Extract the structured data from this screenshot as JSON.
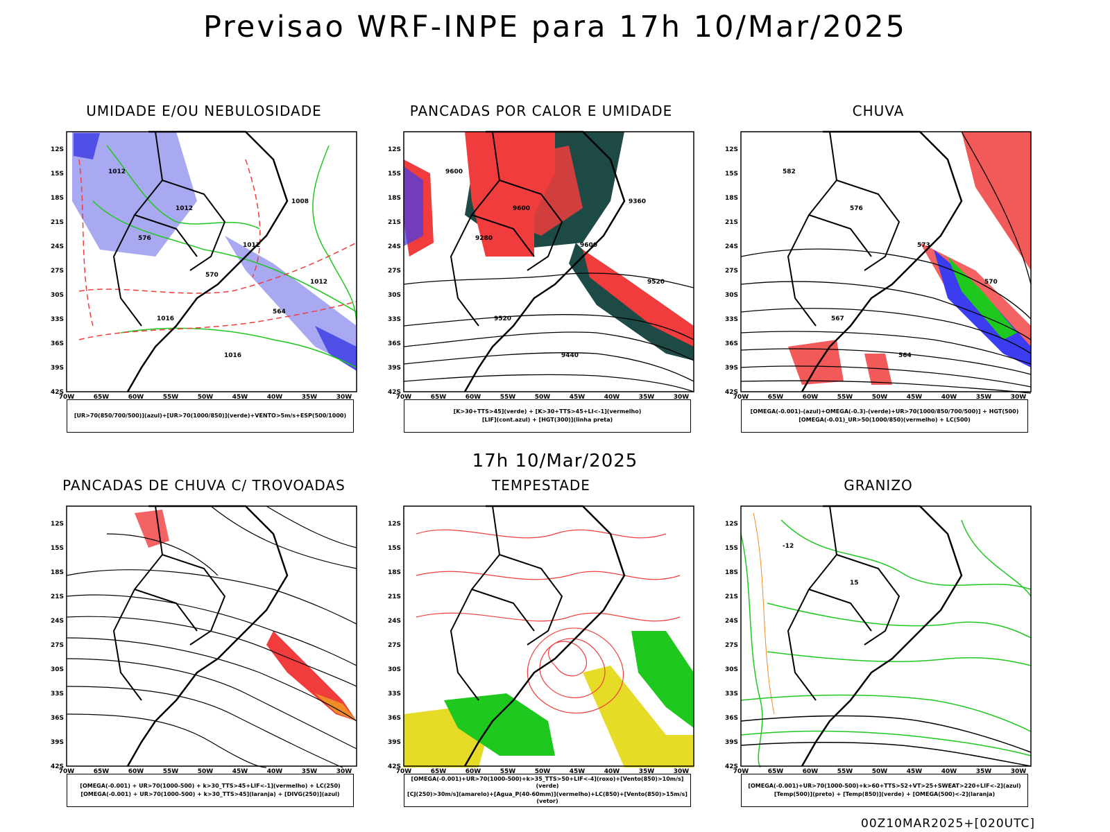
{
  "title": "Previsao WRF-INPE  para 17h 10/Mar/2025",
  "mid_title": "17h 10/Mar/2025",
  "footer": "00Z10MAR2025+[020UTC]",
  "axes": {
    "lat_labels": [
      "12S",
      "15S",
      "18S",
      "21S",
      "24S",
      "27S",
      "30S",
      "33S",
      "36S",
      "39S",
      "42S"
    ],
    "lon_labels": [
      "70W",
      "65W",
      "60W",
      "55W",
      "50W",
      "45W",
      "40W",
      "35W",
      "30W"
    ]
  },
  "panels": [
    {
      "title": "UMIDADE E/OU NEBULOSIDADE",
      "legend": [
        "[UR>70(850/700/500)](azul)+[UR>70(1000/850)](verde)+VENTO>5m/s+ESP(500/1000)"
      ]
    },
    {
      "title": "PANCADAS POR CALOR E UMIDADE",
      "legend": [
        "[K>30+TTS>45](verde) + [K>30+TTS>45+LI<-1](vermelho)",
        "[LIF](cont.azul) + [HGT(300)](linha preta)"
      ]
    },
    {
      "title": "CHUVA",
      "legend": [
        "[OMEGA(-0.001)-(azul)+OMEGA(-0.3)-(verde)+UR>70(1000/850/700/500)] + HGT(500)",
        "[OMEGA(-0.01)_UR>50(1000/850)(vermelho) + LC(500)"
      ]
    },
    {
      "title": "PANCADAS DE CHUVA C/ TROVOADAS",
      "legend": [
        "[OMEGA(-0.001) + UR>70(1000-500) + k>30_TTS>45+LIF<-1](vermelho) + LC(250)",
        "[OMEGA(-0.001) + UR>70(1000-500) + k>30_TTS>45](laranja) + [DIVG(250)](azul)"
      ]
    },
    {
      "title": "TEMPESTADE",
      "legend": [
        "[OMEGA(-0.001)+UR>70(1000-500)+k>35_TTS>50+LIF<-4](roxo)+[Vento(850)>10m/s](verde)",
        "[CJ(250)>30m/s](amarelo)+[Agua_P(40-60mm)](vermelho)+LC(850)+[Vento(850)>15m/s](vetor)"
      ]
    },
    {
      "title": "GRANIZO",
      "legend": [
        "[OMEGA(-0.001)+UR>70(1000-500)+k>60+TTS>52+VT>25+SWEAT>220+LIF<-2](azul)",
        "[Temp(500)](preto) + [Temp(850)](verde) + [OMEGA(500)<-2](laranja)"
      ]
    }
  ],
  "contour_labels": {
    "p1": [
      "1012",
      "1012",
      "1012",
      "1012",
      "1016",
      "1016",
      "1008",
      "576",
      "570",
      "564"
    ],
    "p2": [
      "9600",
      "9600",
      "9600",
      "9520",
      "9520",
      "9440",
      "9360",
      "9280"
    ],
    "p3": [
      "582",
      "576",
      "573",
      "570",
      "567",
      "564"
    ],
    "p6": [
      "-12",
      "15"
    ]
  },
  "colors": {
    "red": "#f03c3c",
    "green": "#1ec81e",
    "blue": "#3c3cf0",
    "lavender": "#a0a0f0",
    "teal": "#1e4a46",
    "yellow": "#e6dc28",
    "orange": "#f08c28"
  }
}
